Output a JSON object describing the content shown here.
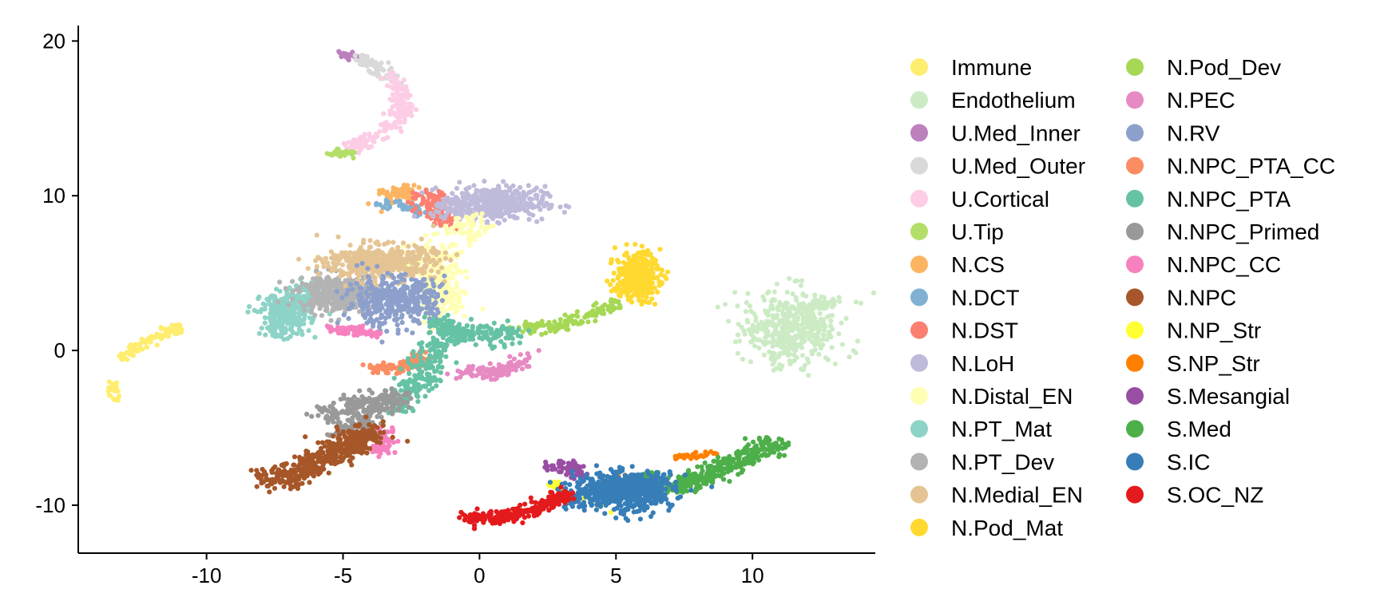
{
  "chart_data": {
    "type": "scatter",
    "title": "",
    "xlabel": "",
    "ylabel": "",
    "xlim": [
      -14.7,
      14.5
    ],
    "ylim": [
      -13.1,
      21.0
    ],
    "x_ticks": [
      -10,
      -5,
      0,
      5,
      10
    ],
    "y_ticks": [
      -10,
      0,
      10,
      20
    ],
    "grid": false,
    "legend_position": "right",
    "series": [
      {
        "name": "Immune",
        "color": "#FFED6F",
        "clusters": [
          {
            "points": [
              [
                -13.3,
                -0.5
              ],
              [
                -12.5,
                0.2
              ],
              [
                -11.6,
                1.1
              ],
              [
                -11.0,
                1.5
              ]
            ],
            "spread": 0.18,
            "n": 90
          },
          {
            "points": [
              [
                -13.5,
                -2.0
              ],
              [
                -13.3,
                -3.3
              ]
            ],
            "spread": 0.12,
            "n": 25
          }
        ]
      },
      {
        "name": "Endothelium",
        "color": "#CCEBC5",
        "clusters": [
          {
            "center": [
              11.4,
              1.3
            ],
            "sx": 0.8,
            "sy": 1.2,
            "n": 420
          },
          {
            "points": [
              [
                12.0,
                2.7
              ],
              [
                12.8,
                3.2
              ]
            ],
            "spread": 0.2,
            "n": 40
          }
        ]
      },
      {
        "name": "U.Med_Inner",
        "color": "#BC80BD",
        "clusters": [
          {
            "points": [
              [
                -5.1,
                19.2
              ],
              [
                -4.5,
                19.0
              ]
            ],
            "spread": 0.12,
            "n": 30
          }
        ]
      },
      {
        "name": "U.Med_Outer",
        "color": "#D9D9D9",
        "clusters": [
          {
            "points": [
              [
                -4.5,
                18.9
              ],
              [
                -3.7,
                18.4
              ],
              [
                -3.2,
                17.6
              ]
            ],
            "spread": 0.2,
            "n": 70
          }
        ]
      },
      {
        "name": "U.Cortical",
        "color": "#FCCDE5",
        "clusters": [
          {
            "points": [
              [
                -3.2,
                17.8
              ],
              [
                -2.9,
                16.6
              ],
              [
                -2.8,
                15.4
              ],
              [
                -3.3,
                14.3
              ],
              [
                -4.2,
                13.5
              ],
              [
                -4.8,
                13.0
              ]
            ],
            "spread": 0.22,
            "n": 200
          }
        ]
      },
      {
        "name": "U.Tip",
        "color": "#B3DE69",
        "clusters": [
          {
            "points": [
              [
                -5.4,
                12.7
              ],
              [
                -4.6,
                12.8
              ]
            ],
            "spread": 0.15,
            "n": 30
          }
        ]
      },
      {
        "name": "N.CS",
        "color": "#FDB462",
        "clusters": [
          {
            "points": [
              [
                -3.4,
                9.9
              ],
              [
                -2.6,
                10.4
              ]
            ],
            "spread": 0.25,
            "n": 60
          }
        ]
      },
      {
        "name": "N.DCT",
        "color": "#80B1D3",
        "clusters": [
          {
            "points": [
              [
                -3.7,
                9.5
              ],
              [
                -2.7,
                9.3
              ],
              [
                -2.1,
                9.0
              ]
            ],
            "spread": 0.15,
            "n": 45
          }
        ]
      },
      {
        "name": "N.DST",
        "color": "#FB8072",
        "clusters": [
          {
            "points": [
              [
                -2.2,
                10.1
              ],
              [
                -1.6,
                9.3
              ],
              [
                -1.3,
                8.3
              ]
            ],
            "spread": 0.28,
            "n": 110
          }
        ]
      },
      {
        "name": "N.LoH",
        "color": "#BEBADA",
        "clusters": [
          {
            "center": [
              0.6,
              9.5
            ],
            "sx": 0.9,
            "sy": 0.55,
            "n": 380
          },
          {
            "points": [
              [
                -1.2,
                9.3
              ],
              [
                -0.4,
                9.8
              ]
            ],
            "spread": 0.3,
            "n": 60
          }
        ]
      },
      {
        "name": "N.Distal_EN",
        "color": "#FFFFB3",
        "clusters": [
          {
            "points": [
              [
                -1.9,
                6.5
              ],
              [
                -1.6,
                5.0
              ],
              [
                -1.4,
                3.8
              ],
              [
                -1.3,
                2.5
              ],
              [
                -0.9,
                7.4
              ],
              [
                0.0,
                8.6
              ]
            ],
            "spread": 0.4,
            "n": 330
          }
        ]
      },
      {
        "name": "N.PT_Mat",
        "color": "#8DD3C7",
        "clusters": [
          {
            "center": [
              -7.1,
              2.3
            ],
            "sx": 0.45,
            "sy": 0.7,
            "n": 300
          },
          {
            "points": [
              [
                -6.5,
                3.3
              ],
              [
                -6.0,
                3.9
              ]
            ],
            "spread": 0.3,
            "n": 60
          }
        ]
      },
      {
        "name": "N.PT_Dev",
        "color": "#B3B3B3",
        "clusters": [
          {
            "center": [
              -5.2,
              3.7
            ],
            "sx": 0.7,
            "sy": 0.6,
            "n": 360
          }
        ]
      },
      {
        "name": "N.Medial_EN",
        "color": "#E5C494",
        "clusters": [
          {
            "center": [
              -3.6,
              5.7
            ],
            "sx": 1.0,
            "sy": 0.55,
            "n": 480
          }
        ]
      },
      {
        "name": "N.Pod_Mat",
        "color": "#FFD92F",
        "clusters": [
          {
            "center": [
              5.8,
              4.8
            ],
            "sx": 0.4,
            "sy": 0.8,
            "n": 260
          },
          {
            "points": [
              [
                5.1,
                3.8
              ],
              [
                6.0,
                5.9
              ]
            ],
            "spread": 0.25,
            "n": 40
          }
        ]
      },
      {
        "name": "N.Pod_Dev",
        "color": "#A6D854",
        "clusters": [
          {
            "points": [
              [
                1.5,
                1.3
              ],
              [
                2.8,
                1.6
              ],
              [
                3.8,
                2.1
              ],
              [
                4.7,
                2.8
              ],
              [
                5.1,
                3.3
              ]
            ],
            "spread": 0.2,
            "n": 130
          }
        ]
      },
      {
        "name": "N.PEC",
        "color": "#E78AC3",
        "clusters": [
          {
            "points": [
              [
                -0.8,
                -1.4
              ],
              [
                0.4,
                -1.5
              ],
              [
                1.1,
                -1.2
              ],
              [
                1.8,
                -0.4
              ]
            ],
            "spread": 0.22,
            "n": 120
          }
        ]
      },
      {
        "name": "N.RV",
        "color": "#8DA0CB",
        "clusters": [
          {
            "center": [
              -3.3,
              3.2
            ],
            "sx": 0.8,
            "sy": 0.8,
            "n": 360
          },
          {
            "points": [
              [
                -2.0,
                4.5
              ],
              [
                -1.8,
                2.0
              ]
            ],
            "spread": 0.3,
            "n": 50
          }
        ]
      },
      {
        "name": "N.NPC_PTA_CC",
        "color": "#FC8D62",
        "clusters": [
          {
            "points": [
              [
                -4.0,
                -1.2
              ],
              [
                -3.0,
                -1.1
              ],
              [
                -2.3,
                -0.8
              ],
              [
                -2.1,
                -0.2
              ]
            ],
            "spread": 0.22,
            "n": 110
          }
        ]
      },
      {
        "name": "N.NPC_PTA",
        "color": "#66C2A5",
        "clusters": [
          {
            "points": [
              [
                -1.5,
                2.0
              ],
              [
                -1.1,
                1.2
              ],
              [
                -0.6,
                1.0
              ],
              [
                0.3,
                1.0
              ],
              [
                1.3,
                1.1
              ]
            ],
            "spread": 0.3,
            "n": 230
          },
          {
            "points": [
              [
                -1.5,
                0.8
              ],
              [
                -1.9,
                -1.1
              ],
              [
                -2.4,
                -2.6
              ],
              [
                -3.0,
                -3.7
              ]
            ],
            "spread": 0.35,
            "n": 200
          }
        ]
      },
      {
        "name": "N.NPC_Primed",
        "color": "#999999",
        "clusters": [
          {
            "points": [
              [
                -5.7,
                -4.1
              ],
              [
                -4.6,
                -3.7
              ],
              [
                -3.7,
                -3.3
              ],
              [
                -3.0,
                -3.0
              ],
              [
                -5.0,
                -5.2
              ],
              [
                -4.0,
                -4.6
              ]
            ],
            "spread": 0.35,
            "n": 300
          }
        ]
      },
      {
        "name": "N.NPC_CC",
        "color": "#F781BF",
        "clusters": [
          {
            "points": [
              [
                -5.5,
                1.4
              ],
              [
                -4.6,
                1.3
              ],
              [
                -3.7,
                1.0
              ]
            ],
            "spread": 0.15,
            "n": 80
          },
          {
            "points": [
              [
                -3.5,
                -5.0
              ],
              [
                -3.4,
                -6.1
              ],
              [
                -3.7,
                -6.4
              ]
            ],
            "spread": 0.2,
            "n": 60
          }
        ]
      },
      {
        "name": "N.NPC",
        "color": "#A65628",
        "clusters": [
          {
            "points": [
              [
                -7.6,
                -8.4
              ],
              [
                -6.8,
                -8.0
              ],
              [
                -6.0,
                -7.3
              ],
              [
                -5.2,
                -6.5
              ],
              [
                -4.5,
                -5.8
              ],
              [
                -4.0,
                -5.2
              ]
            ],
            "spread": 0.38,
            "n": 460
          }
        ]
      },
      {
        "name": "N.NP_Str",
        "color": "#FFFF33",
        "clusters": [
          {
            "points": [
              [
                2.6,
                -8.6
              ],
              [
                2.9,
                -8.8
              ],
              [
                4.9,
                -10.6
              ]
            ],
            "spread": 0.15,
            "n": 25
          }
        ]
      },
      {
        "name": "S.NP_Str",
        "color": "#FF7F00",
        "clusters": [
          {
            "points": [
              [
                7.2,
                -6.9
              ],
              [
                8.0,
                -6.8
              ],
              [
                8.7,
                -6.5
              ]
            ],
            "spread": 0.12,
            "n": 35
          },
          {
            "points": [
              [
                5.3,
                -8.2
              ],
              [
                4.4,
                -8.4
              ]
            ],
            "spread": 0.2,
            "n": 10
          }
        ]
      },
      {
        "name": "S.Mesangial",
        "color": "#984EA3",
        "clusters": [
          {
            "points": [
              [
                2.6,
                -7.3
              ],
              [
                3.3,
                -7.6
              ],
              [
                3.7,
                -8.1
              ]
            ],
            "spread": 0.2,
            "n": 60
          }
        ]
      },
      {
        "name": "S.Med",
        "color": "#4DAF4A",
        "clusters": [
          {
            "points": [
              [
                7.0,
                -9.0
              ],
              [
                8.0,
                -8.3
              ],
              [
                9.0,
                -7.5
              ],
              [
                10.0,
                -6.7
              ],
              [
                10.8,
                -6.0
              ]
            ],
            "spread": 0.3,
            "n": 330
          },
          {
            "points": [
              [
                6.2,
                -8.0
              ],
              [
                6.5,
                -8.8
              ]
            ],
            "spread": 0.2,
            "n": 40
          }
        ]
      },
      {
        "name": "S.IC",
        "color": "#377EB8",
        "clusters": [
          {
            "center": [
              5.3,
              -9.0
            ],
            "sx": 0.9,
            "sy": 0.55,
            "n": 520
          },
          {
            "points": [
              [
                3.4,
                -9.8
              ],
              [
                4.3,
                -9.3
              ],
              [
                6.4,
                -8.4
              ],
              [
                5.6,
                -10.6
              ]
            ],
            "spread": 0.35,
            "n": 150
          }
        ]
      },
      {
        "name": "S.OC_NZ",
        "color": "#E41A1C",
        "clusters": [
          {
            "points": [
              [
                -0.5,
                -10.9
              ],
              [
                0.3,
                -10.9
              ],
              [
                1.2,
                -10.6
              ],
              [
                2.2,
                -10.2
              ],
              [
                2.8,
                -9.6
              ],
              [
                3.3,
                -9.3
              ]
            ],
            "spread": 0.2,
            "n": 260
          }
        ]
      }
    ]
  }
}
